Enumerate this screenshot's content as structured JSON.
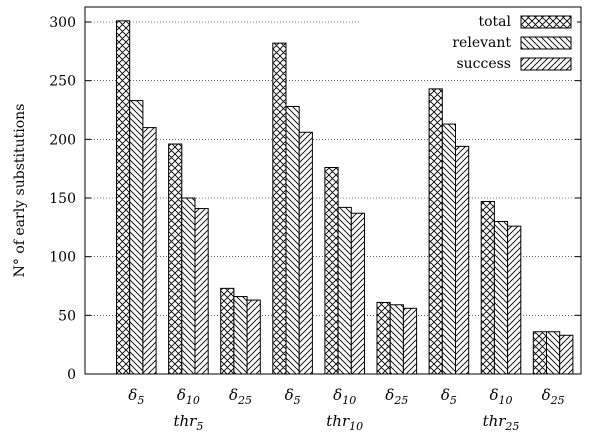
{
  "chart_data": {
    "type": "bar",
    "ylabel": "N° of early substitutions",
    "ylim": [
      0,
      300
    ],
    "yticks": [
      0,
      50,
      100,
      150,
      200,
      250,
      300
    ],
    "grid": "horizontal-dotted",
    "legend_position": "top-right",
    "groups": [
      {
        "label_base": "thr",
        "label_sub": "5",
        "categories": [
          {
            "base": "δ",
            "sub": "5"
          },
          {
            "base": "δ",
            "sub": "10"
          },
          {
            "base": "δ",
            "sub": "25"
          }
        ]
      },
      {
        "label_base": "thr",
        "label_sub": "10",
        "categories": [
          {
            "base": "δ",
            "sub": "5"
          },
          {
            "base": "δ",
            "sub": "10"
          },
          {
            "base": "δ",
            "sub": "25"
          }
        ]
      },
      {
        "label_base": "thr",
        "label_sub": "25",
        "categories": [
          {
            "base": "δ",
            "sub": "5"
          },
          {
            "base": "δ",
            "sub": "10"
          },
          {
            "base": "δ",
            "sub": "25"
          }
        ]
      }
    ],
    "series": [
      {
        "name": "total",
        "pattern": "crosshatch",
        "values": [
          301,
          196,
          73,
          282,
          176,
          61,
          243,
          147,
          36
        ]
      },
      {
        "name": "relevant",
        "pattern": "backslash",
        "values": [
          233,
          150,
          66,
          228,
          142,
          59,
          213,
          130,
          36
        ]
      },
      {
        "name": "success",
        "pattern": "slash",
        "values": [
          210,
          141,
          63,
          206,
          137,
          56,
          194,
          126,
          33
        ]
      }
    ]
  }
}
